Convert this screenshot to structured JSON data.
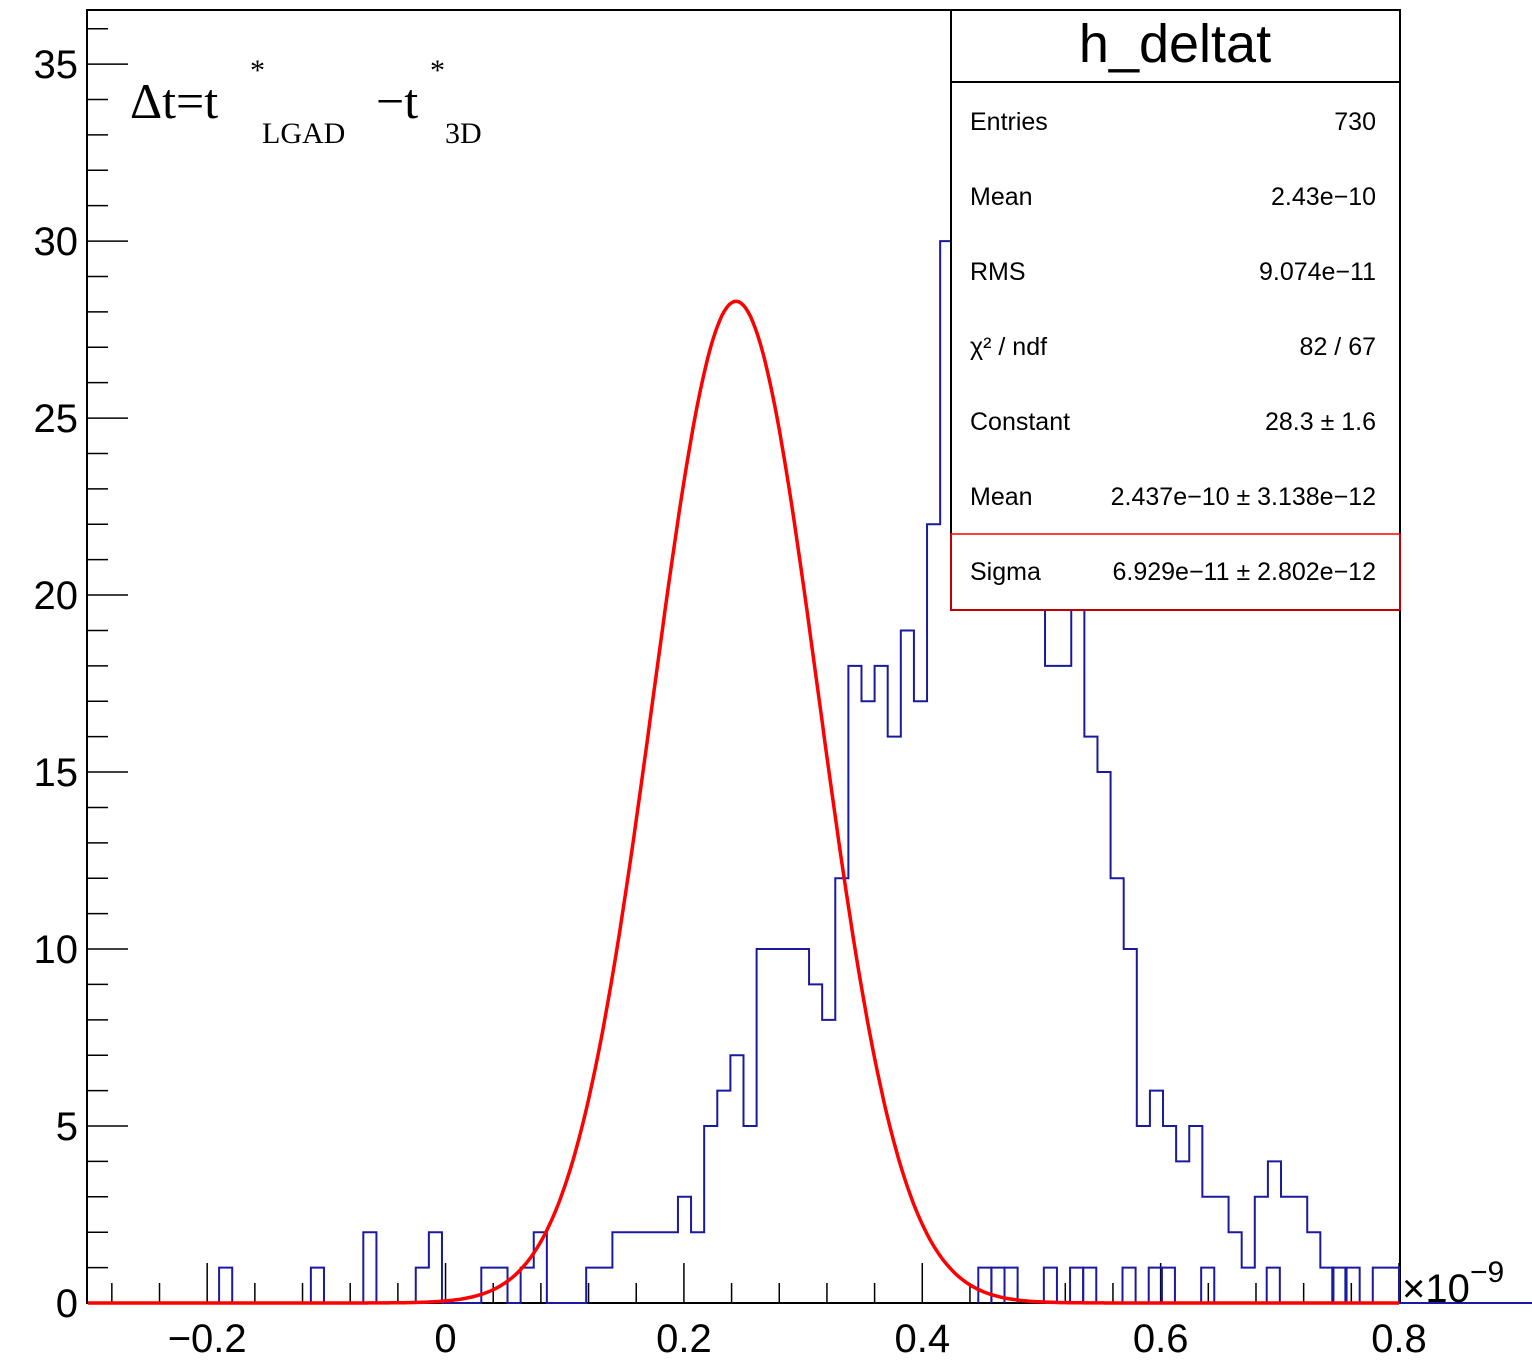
{
  "chart_data": {
    "type": "bar",
    "histogram_name": "h_deltat",
    "annotation": {
      "prefix": "Δt=t",
      "star1": "*",
      "sub1": "LGAD",
      "minus": "−t",
      "star2": "*",
      "sub2": "3D"
    },
    "x_scale_label": "×10",
    "x_scale_exp": "−9",
    "xlim": [
      -0.3,
      0.8
    ],
    "ylim": [
      0,
      36.5
    ],
    "x_ticks": [
      "−0.2",
      "0",
      "0.2",
      "0.4",
      "0.6",
      "0.8"
    ],
    "x_tick_values": [
      -0.2,
      0,
      0.2,
      0.4,
      0.6,
      0.8
    ],
    "y_ticks": [
      "0",
      "5",
      "10",
      "15",
      "20",
      "25",
      "30",
      "35"
    ],
    "y_tick_values": [
      0,
      5,
      10,
      15,
      20,
      25,
      30,
      35
    ],
    "bin_width": 0.011,
    "series": [
      {
        "kind": "histogram",
        "color": "#1a1aa0",
        "x_start": -0.19,
        "counts": [
          1,
          0,
          0,
          0,
          0,
          0,
          0,
          1,
          0,
          0,
          0,
          2,
          0,
          0,
          0,
          1,
          2,
          0,
          0,
          0,
          1,
          1,
          0,
          1,
          2,
          0,
          0,
          0,
          1,
          1,
          2,
          2,
          2,
          2,
          2,
          3,
          2,
          5,
          6,
          7,
          5,
          10,
          10,
          10,
          10,
          9,
          8,
          12,
          18,
          17,
          18,
          16,
          19,
          17,
          22,
          30,
          35,
          30,
          34,
          33,
          32,
          23,
          21,
          18,
          18,
          20,
          16,
          15,
          12,
          10,
          5,
          6,
          5,
          4,
          5,
          3,
          3,
          2,
          1,
          3,
          4,
          3,
          3,
          2,
          1,
          0,
          1,
          0,
          1,
          1,
          0,
          0,
          0,
          0,
          0,
          0,
          0,
          0,
          0,
          0,
          0,
          0,
          0
        ],
        "sparse_tail": [
          {
            "x": 0.447,
            "count": 1
          },
          {
            "x": 0.458,
            "count": 1
          },
          {
            "x": 0.469,
            "count": 1
          },
          {
            "x": 0.502,
            "count": 1
          },
          {
            "x": 0.524,
            "count": 1
          },
          {
            "x": 0.535,
            "count": 1
          },
          {
            "x": 0.568,
            "count": 1
          },
          {
            "x": 0.59,
            "count": 1
          },
          {
            "x": 0.601,
            "count": 1
          },
          {
            "x": 0.634,
            "count": 1
          },
          {
            "x": 0.689,
            "count": 1
          },
          {
            "x": 0.744,
            "count": 1
          }
        ]
      },
      {
        "kind": "gaussian_fit",
        "color": "#ff0000",
        "constant": 28.3,
        "mean": 0.2437,
        "sigma": 0.06929
      }
    ],
    "stats": {
      "rows": [
        {
          "label": "Entries",
          "value": "730"
        },
        {
          "label": "Mean",
          "value": "2.43e−10"
        },
        {
          "label": "RMS",
          "value": "9.074e−11"
        },
        {
          "label": "χ² / ndf",
          "value": "82 / 67"
        },
        {
          "label": "Constant",
          "value": "28.3 ± 1.6"
        },
        {
          "label": "Mean",
          "value": "2.437e−10 ± 3.138e−12"
        },
        {
          "label": "Sigma",
          "value": "6.929e−11 ± 2.802e−12"
        }
      ]
    }
  }
}
